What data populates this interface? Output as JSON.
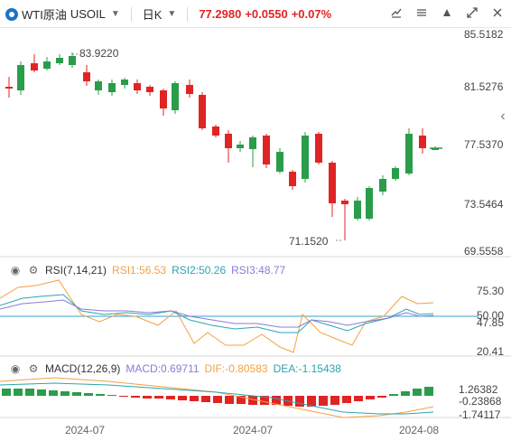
{
  "header": {
    "name": "WTI原油",
    "code": "USOIL",
    "period": "日K",
    "price": "77.2980",
    "change": "+0.0550",
    "change_pct": "+0.07%"
  },
  "price_axis": [
    "85.5182",
    "81.5276",
    "77.5370",
    "73.5464",
    "69.5558"
  ],
  "price_annotations": {
    "high": "83.9220",
    "low": "71.1520"
  },
  "rsi": {
    "title": "RSI(7,14,21)",
    "rsi1": "RSI1:56.53",
    "rsi2": "RSI2:50.26",
    "rsi3": "RSI3:48.77",
    "axis": [
      "75.30",
      "50.00",
      "47.85",
      "20.41"
    ]
  },
  "macd": {
    "title": "MACD(12,26,9)",
    "macd": "MACD:0.69711",
    "dif": "DIF:-0.80583",
    "dea": "DEA:-1.15438",
    "axis": [
      "1.26382",
      "-0.23868",
      "-1.74117"
    ]
  },
  "dates": [
    "2024-07",
    "2024-07",
    "2024-08"
  ],
  "colors": {
    "up": "#e02424",
    "down": "#2a9d4a",
    "accent": "#1a73c8",
    "rsi_ref": "#3aa0d8"
  },
  "icons": [
    "coin-icon",
    "draw-tools-icon",
    "compare-icon",
    "indicator-icon",
    "expand-icon",
    "close-icon",
    "chevron-left-icon",
    "eye-icon",
    "settings-icon"
  ]
}
